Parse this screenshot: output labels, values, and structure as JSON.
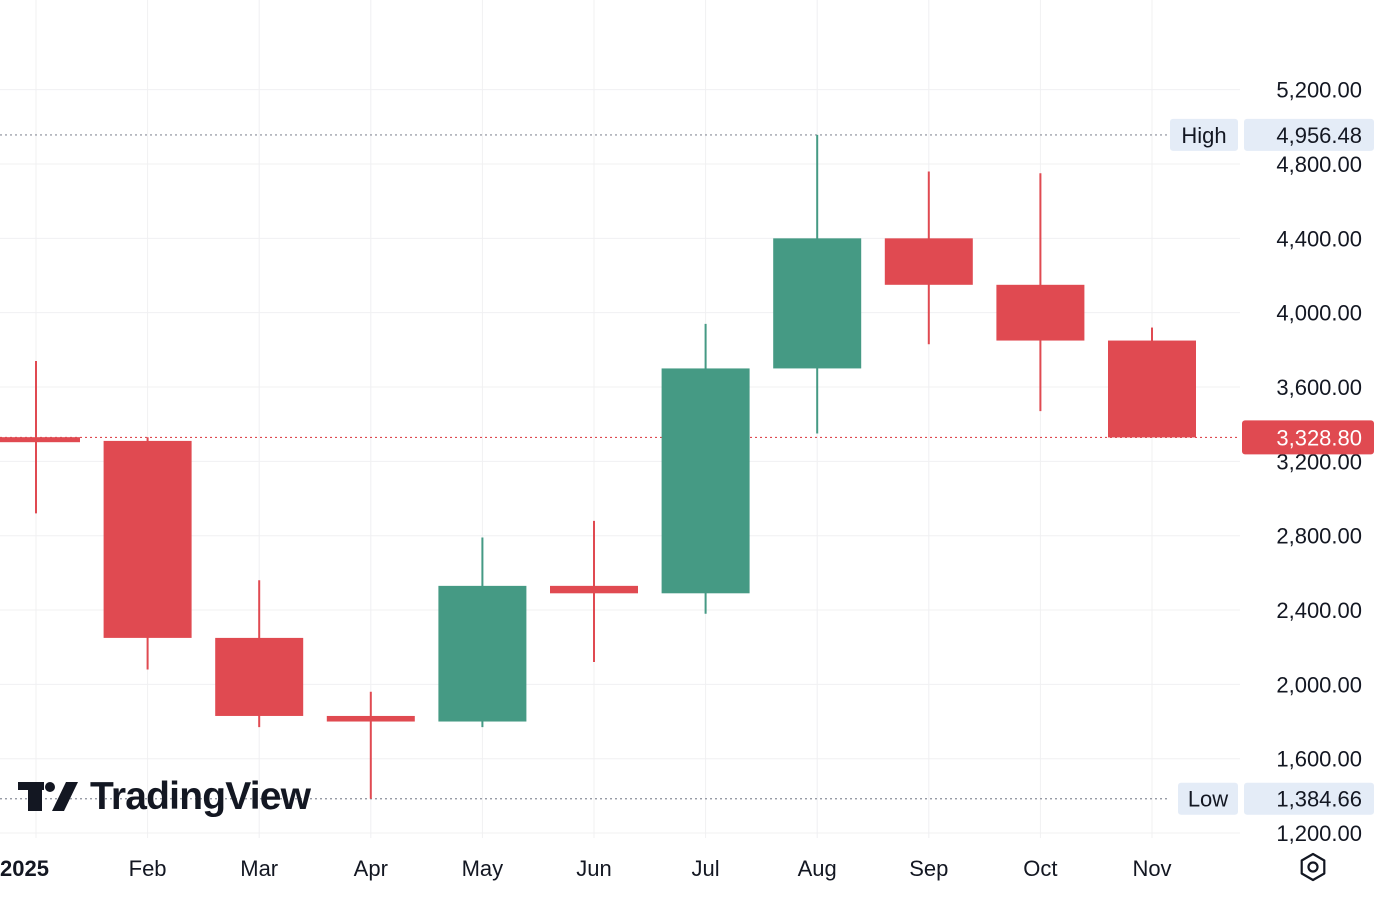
{
  "chart_data": {
    "type": "candlestick",
    "x_labels": [
      "2025",
      "Feb",
      "Mar",
      "Apr",
      "May",
      "Jun",
      "Jul",
      "Aug",
      "Sep",
      "Oct",
      "Nov"
    ],
    "candles": [
      {
        "label": "2025",
        "open": 3330,
        "high": 3740,
        "low": 2920,
        "close": 3310
      },
      {
        "label": "Feb",
        "open": 3310,
        "high": 3330,
        "low": 2080,
        "close": 2250
      },
      {
        "label": "Mar",
        "open": 2250,
        "high": 2560,
        "low": 1770,
        "close": 1830
      },
      {
        "label": "Apr",
        "open": 1830,
        "high": 1960,
        "low": 1384.66,
        "close": 1800
      },
      {
        "label": "May",
        "open": 1800,
        "high": 2790,
        "low": 1770,
        "close": 2530
      },
      {
        "label": "Jun",
        "open": 2530,
        "high": 2880,
        "low": 2120,
        "close": 2490
      },
      {
        "label": "Jul",
        "open": 2490,
        "high": 3940,
        "low": 2380,
        "close": 3700
      },
      {
        "label": "Aug",
        "open": 3700,
        "high": 4956.48,
        "low": 3350,
        "close": 4400
      },
      {
        "label": "Sep",
        "open": 4400,
        "high": 4760,
        "low": 3830,
        "close": 4150
      },
      {
        "label": "Oct",
        "open": 4150,
        "high": 4750,
        "low": 3470,
        "close": 3850
      },
      {
        "label": "Nov",
        "open": 3850,
        "high": 3920,
        "low": 3328.8,
        "close": 3328.8
      }
    ],
    "y_ticks": [
      "5,200.00",
      "4,800.00",
      "4,400.00",
      "4,000.00",
      "3,600.00",
      "3,200.00",
      "2,800.00",
      "2,400.00",
      "2,000.00",
      "1,600.00",
      "1,200.00"
    ],
    "y_tick_values": [
      5200,
      4800,
      4400,
      4000,
      3600,
      3200,
      2800,
      2400,
      2000,
      1600,
      1200
    ],
    "y_range": [
      1000,
      5450
    ],
    "high_marker": {
      "label": "High",
      "value": 4956.48,
      "text": "4,956.48"
    },
    "low_marker": {
      "label": "Low",
      "value": 1384.66,
      "text": "1,384.66"
    },
    "last_price": {
      "value": 3328.8,
      "text": "3,328.80"
    },
    "grid": true,
    "colors": {
      "up": "#459a84",
      "down": "#e04a51",
      "grid": "#f0f0f2",
      "text": "#131722",
      "marker_bg": "#e4ecf7"
    }
  },
  "brand": {
    "name": "TradingView"
  },
  "settings_icon": "gear-icon"
}
